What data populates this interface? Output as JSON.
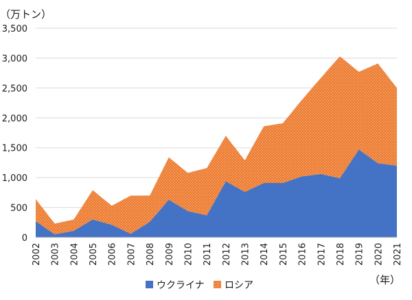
{
  "chart_data": {
    "type": "area",
    "stacked": true,
    "ylabel": "（万トン）",
    "xlabel": "（年）",
    "ylim": [
      0,
      3500
    ],
    "y_ticks": [
      0,
      500,
      1000,
      1500,
      2000,
      2500,
      3000,
      3500
    ],
    "y_tick_labels": [
      "0",
      "500",
      "1,000",
      "1,500",
      "2,000",
      "2,500",
      "3,000",
      "3,500"
    ],
    "grid": true,
    "legend_position": "bottom",
    "categories": [
      "2002",
      "2003",
      "2004",
      "2005",
      "2006",
      "2007",
      "2008",
      "2009",
      "2010",
      "2011",
      "2012",
      "2013",
      "2014",
      "2015",
      "2016",
      "2017",
      "2018",
      "2019",
      "2020",
      "2021"
    ],
    "series": [
      {
        "name": "ウクライナ",
        "color": "#4472c4",
        "pattern": "solid",
        "values": [
          270,
          50,
          110,
          300,
          210,
          60,
          260,
          630,
          440,
          370,
          940,
          760,
          910,
          910,
          1020,
          1060,
          990,
          1470,
          1240,
          1200
        ]
      },
      {
        "name": "ロシア",
        "color": "#ed7d31",
        "pattern": "dotted",
        "values": [
          370,
          180,
          190,
          490,
          320,
          640,
          440,
          710,
          640,
          790,
          760,
          530,
          950,
          1000,
          1280,
          1610,
          2040,
          1300,
          1670,
          1300
        ]
      }
    ]
  }
}
